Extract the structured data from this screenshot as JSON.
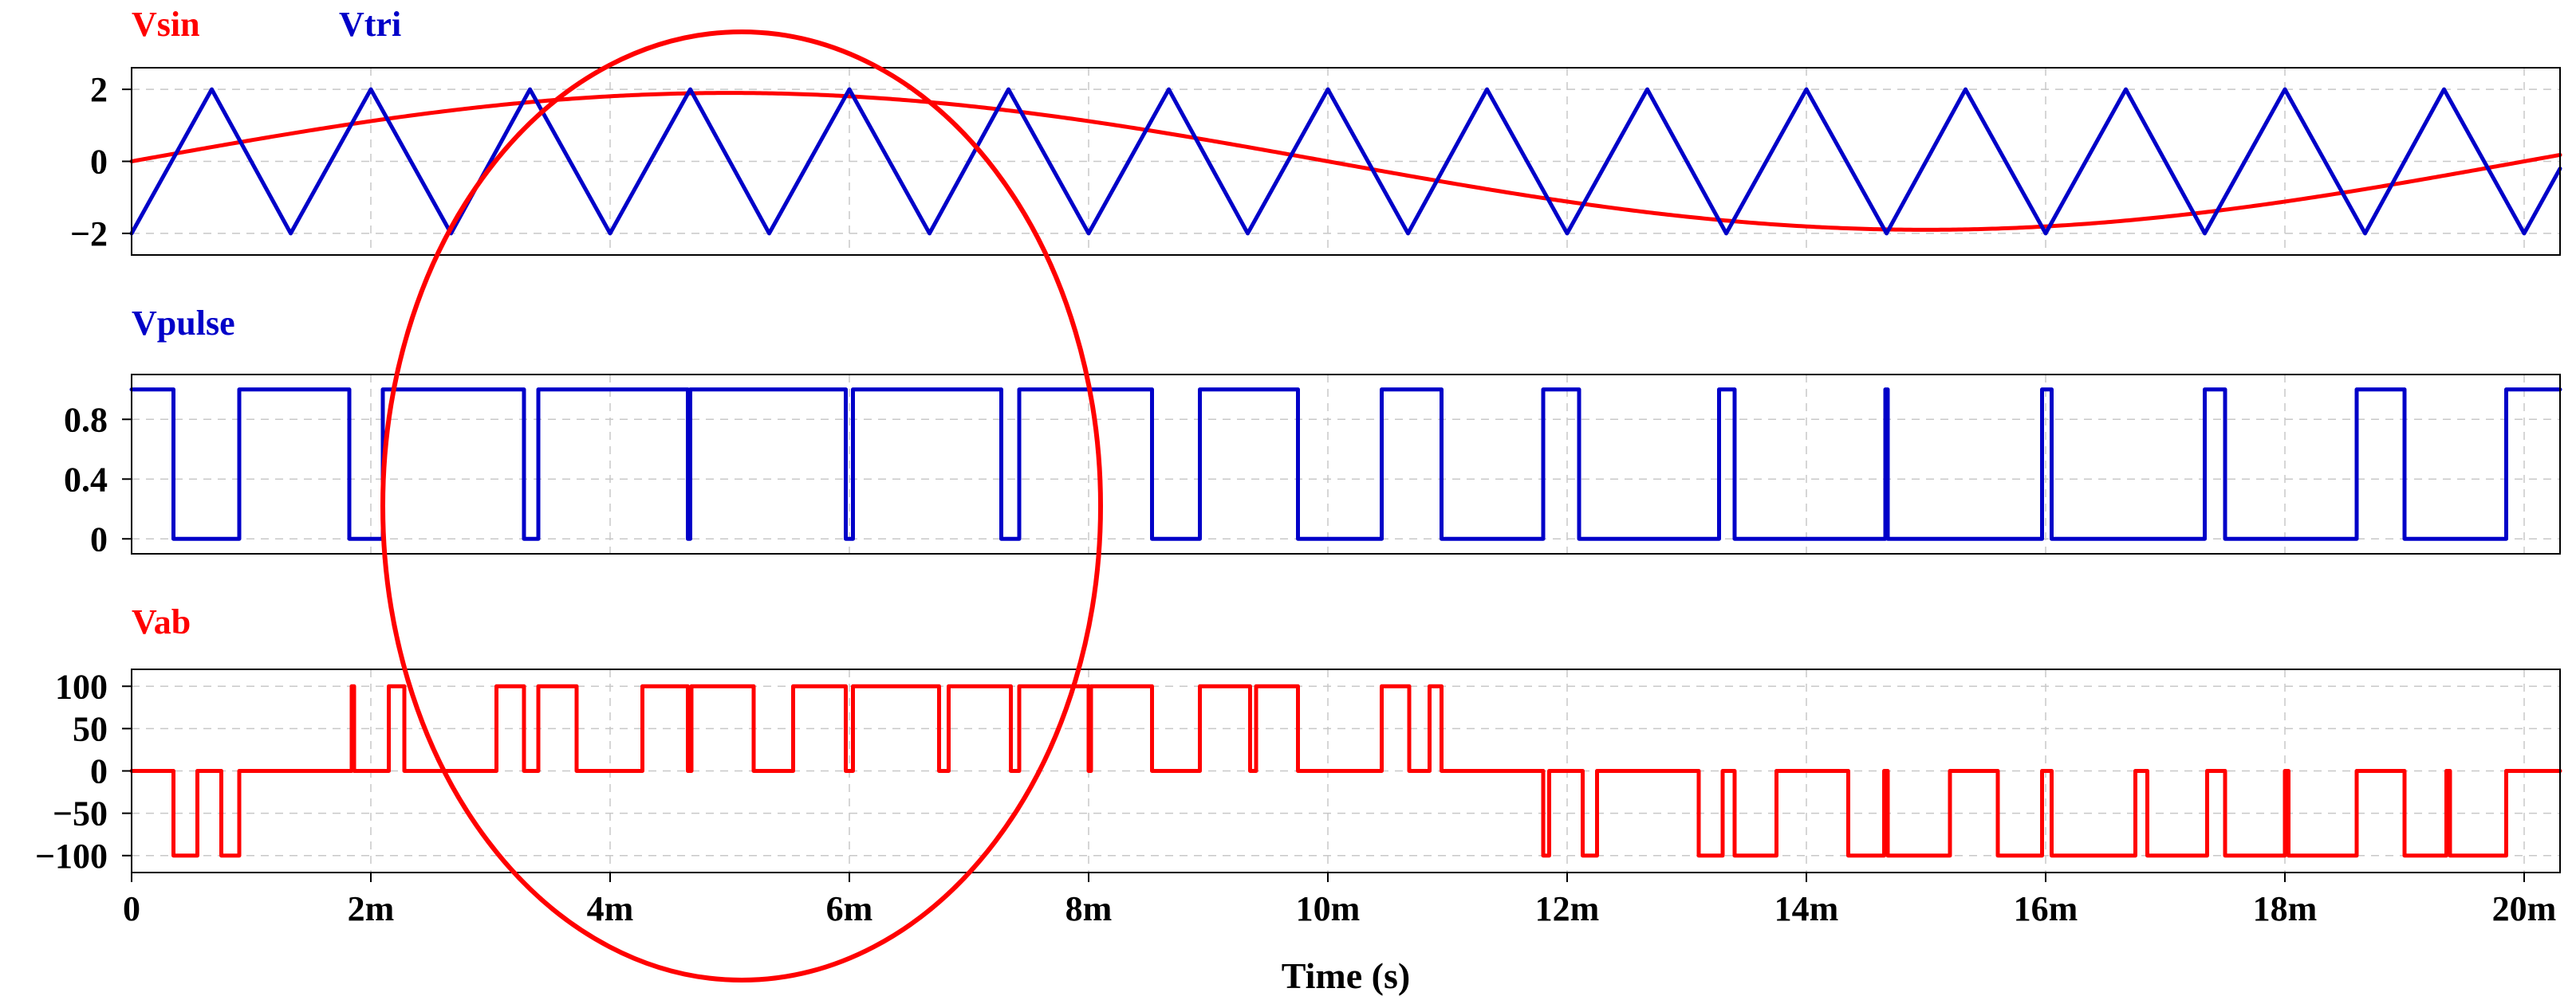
{
  "chart_data": {
    "type": "line",
    "colors": {
      "red": "#ff0000",
      "blue": "#0000c8"
    },
    "xaxis": {
      "title": "Time (s)",
      "range": [
        0,
        0.0203
      ],
      "ticks": [
        0,
        0.002,
        0.004,
        0.006,
        0.008,
        0.01,
        0.012,
        0.014,
        0.016,
        0.018,
        0.02
      ],
      "tick_labels": [
        "0",
        "2m",
        "4m",
        "6m",
        "8m",
        "10m",
        "12m",
        "14m",
        "16m",
        "18m",
        "20m"
      ],
      "grid": true
    },
    "panels": [
      {
        "name": "top",
        "ylim": [
          -2.6,
          2.6
        ],
        "yticks": [
          2,
          0,
          -2
        ],
        "ytick_labels": [
          "2",
          "0",
          "−2"
        ],
        "grid": true,
        "series": [
          {
            "name": "Vsin",
            "color": "#ff0000",
            "kind": "sine",
            "amplitude": 1.9,
            "period": 0.02
          },
          {
            "name": "Vtri",
            "color": "#0000c8",
            "kind": "triangle",
            "x": [
              0,
              0.00067,
              0.00133,
              0.002,
              0.00267,
              0.00333,
              0.004,
              0.00467,
              0.00533,
              0.006,
              0.00667,
              0.00733,
              0.008,
              0.00867,
              0.00933,
              0.01,
              0.01067,
              0.01133,
              0.012,
              0.01267,
              0.01333,
              0.014,
              0.01467,
              0.01533,
              0.016,
              0.01667,
              0.01733,
              0.018,
              0.01867,
              0.01933,
              0.02,
              0.0203
            ],
            "y": [
              -2,
              2,
              -2,
              2,
              -2,
              2,
              -2,
              2,
              -2,
              2,
              -2,
              2,
              -2,
              2,
              -2,
              2,
              -2,
              2,
              -2,
              2,
              -2,
              2,
              -2,
              2,
              -2,
              2,
              -2,
              2,
              -2,
              2,
              -2,
              -0.2
            ]
          }
        ]
      },
      {
        "name": "middle",
        "ylim": [
          -0.1,
          1.1
        ],
        "yticks": [
          0.8,
          0.4,
          0
        ],
        "ytick_labels": [
          "0.8",
          "0.4",
          "0"
        ],
        "grid": true,
        "series": [
          {
            "name": "Vpulse",
            "color": "#0000c8",
            "kind": "step",
            "initial": 1,
            "transitions": [
              [
                0.00035,
                0
              ],
              [
                0.0009,
                1
              ],
              [
                0.00182,
                0
              ],
              [
                0.0021,
                1
              ],
              [
                0.00328,
                0
              ],
              [
                0.0034,
                1
              ],
              [
                0.00465,
                0
              ],
              [
                0.00467,
                1
              ],
              [
                0.00597,
                0
              ],
              [
                0.00603,
                1
              ],
              [
                0.00727,
                0
              ],
              [
                0.00742,
                1
              ],
              [
                0.00853,
                0
              ],
              [
                0.00893,
                1
              ],
              [
                0.00975,
                0
              ],
              [
                0.01045,
                1
              ],
              [
                0.01095,
                0
              ],
              [
                0.0118,
                1
              ],
              [
                0.0121,
                0
              ],
              [
                0.01327,
                1
              ],
              [
                0.0134,
                0
              ],
              [
                0.01466,
                1
              ],
              [
                0.01468,
                0
              ],
              [
                0.01597,
                1
              ],
              [
                0.01605,
                0
              ],
              [
                0.01733,
                1
              ],
              [
                0.0175,
                0
              ],
              [
                0.0186,
                1
              ],
              [
                0.019,
                0
              ],
              [
                0.01985,
                1
              ]
            ]
          }
        ]
      },
      {
        "name": "bottom",
        "ylim": [
          -120,
          120
        ],
        "yticks": [
          100,
          50,
          0,
          -50,
          -100
        ],
        "ytick_labels": [
          "100",
          "50",
          "0",
          "−50",
          "−100"
        ],
        "grid": true,
        "series": [
          {
            "name": "Vab",
            "color": "#ff0000",
            "kind": "step",
            "initial": 0,
            "transitions": [
              [
                0.00035,
                -100
              ],
              [
                0.00055,
                0
              ],
              [
                0.00075,
                -100
              ],
              [
                0.0009,
                0
              ],
              [
                0.00184,
                100
              ],
              [
                0.00186,
                0
              ],
              [
                0.00215,
                100
              ],
              [
                0.00228,
                0
              ],
              [
                0.00305,
                100
              ],
              [
                0.00328,
                0
              ],
              [
                0.0034,
                100
              ],
              [
                0.00372,
                0
              ],
              [
                0.00427,
                100
              ],
              [
                0.00465,
                0
              ],
              [
                0.00468,
                100
              ],
              [
                0.0052,
                0
              ],
              [
                0.00553,
                100
              ],
              [
                0.00597,
                0
              ],
              [
                0.00603,
                100
              ],
              [
                0.00675,
                0
              ],
              [
                0.00683,
                100
              ],
              [
                0.00735,
                0
              ],
              [
                0.00742,
                100
              ],
              [
                0.008,
                0
              ],
              [
                0.00802,
                100
              ],
              [
                0.00853,
                0
              ],
              [
                0.00893,
                100
              ],
              [
                0.00935,
                0
              ],
              [
                0.0094,
                100
              ],
              [
                0.00975,
                0
              ],
              [
                0.01045,
                100
              ],
              [
                0.01068,
                0
              ],
              [
                0.01085,
                100
              ],
              [
                0.01095,
                0
              ],
              [
                0.0118,
                -100
              ],
              [
                0.01185,
                0
              ],
              [
                0.01213,
                -100
              ],
              [
                0.01225,
                0
              ],
              [
                0.0131,
                -100
              ],
              [
                0.0133,
                0
              ],
              [
                0.0134,
                -100
              ],
              [
                0.01375,
                0
              ],
              [
                0.01435,
                -100
              ],
              [
                0.01465,
                0
              ],
              [
                0.01468,
                -100
              ],
              [
                0.0152,
                0
              ],
              [
                0.0156,
                -100
              ],
              [
                0.01597,
                0
              ],
              [
                0.01605,
                -100
              ],
              [
                0.01675,
                0
              ],
              [
                0.01685,
                -100
              ],
              [
                0.01735,
                0
              ],
              [
                0.0175,
                -100
              ],
              [
                0.018,
                0
              ],
              [
                0.01803,
                -100
              ],
              [
                0.0186,
                0
              ],
              [
                0.019,
                -100
              ],
              [
                0.01935,
                0
              ],
              [
                0.01938,
                -100
              ],
              [
                0.01985,
                0
              ]
            ]
          }
        ]
      }
    ],
    "annotations": [
      {
        "kind": "ellipse",
        "color": "#ff0000",
        "center": [
          0.0051,
          0.4
        ],
        "rx_x": 0.003
      }
    ]
  }
}
